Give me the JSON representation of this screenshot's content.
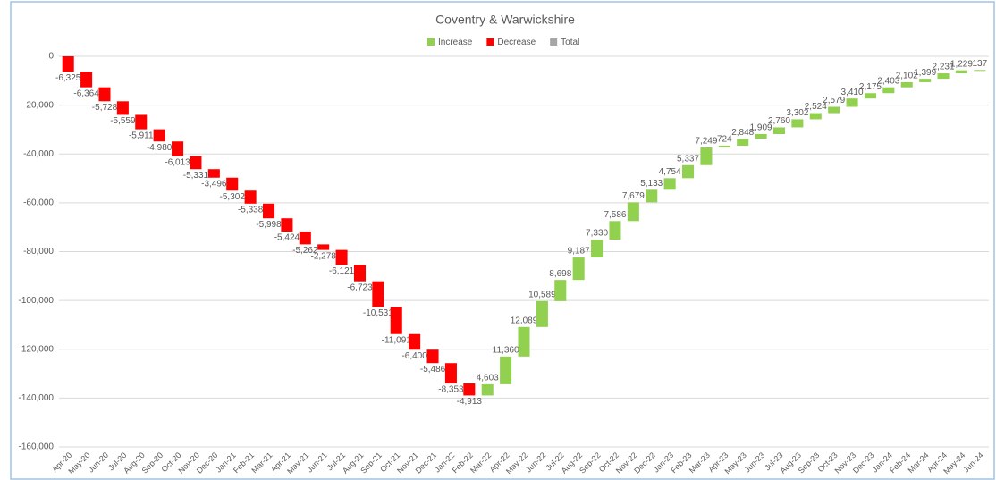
{
  "chart_data": {
    "type": "waterfall",
    "title": "Coventry & Warwickshire",
    "legend": [
      {
        "name": "Increase",
        "color": "#92d050"
      },
      {
        "name": "Decrease",
        "color": "#ff0000"
      },
      {
        "name": "Total",
        "color": "#a5a5a5"
      }
    ],
    "categories": [
      "Apr-20",
      "May-20",
      "Jun-20",
      "Jul-20",
      "Aug-20",
      "Sep-20",
      "Oct-20",
      "Nov-20",
      "Dec-20",
      "Jan-21",
      "Feb-21",
      "Mar-21",
      "Apr-21",
      "May-21",
      "Jun-21",
      "Jul-21",
      "Aug-21",
      "Sep-21",
      "Oct-21",
      "Nov-21",
      "Dec-21",
      "Jan-22",
      "Feb-22",
      "Mar-22",
      "Apr-22",
      "May-22",
      "Jun-22",
      "Jul-22",
      "Aug-22",
      "Sep-22",
      "Oct-22",
      "Nov-22",
      "Dec-22",
      "Jan-23",
      "Feb-23",
      "Mar-23",
      "Apr-23",
      "May-23",
      "Jun-23",
      "Jul-23",
      "Aug-23",
      "Sep-23",
      "Oct-23",
      "Nov-23",
      "Dec-23",
      "Jan-24",
      "Feb-24",
      "Mar-24",
      "Apr-24",
      "May-24",
      "Jun-24"
    ],
    "values": [
      -6325,
      -6364,
      -5728,
      -5559,
      -5911,
      -4980,
      -6013,
      -5331,
      -3496,
      -5302,
      -5338,
      -5998,
      -5424,
      -5262,
      -2278,
      -6121,
      -6723,
      -10531,
      -11091,
      -6400,
      -5486,
      -8353,
      -4913,
      4603,
      11360,
      12089,
      10589,
      8698,
      9187,
      7330,
      7586,
      7679,
      5133,
      4754,
      5337,
      7249,
      724,
      2848,
      1909,
      2760,
      3302,
      2524,
      2579,
      3410,
      2175,
      2403,
      2102,
      1399,
      2231,
      1229,
      137
    ],
    "value_labels": [
      "-6,325",
      "-6,364",
      "-5,728",
      "-5,559",
      "-5,911",
      "-4,980",
      "-6,013",
      "-5,331",
      "-3,496",
      "-5,302",
      "-5,338",
      "-5,998",
      "-5,424",
      "-5,262",
      "-2,278",
      "-6,121",
      "-6,723",
      "-10,531",
      "-11,091",
      "-6,400",
      "-5,486",
      "-8,353",
      "-4,913",
      "4,603",
      "11,360",
      "12,089",
      "10,589",
      "8,698",
      "9,187",
      "7,330",
      "7,586",
      "7,679",
      "5,133",
      "4,754",
      "5,337",
      "7,249",
      "724",
      "2,848",
      "1,909",
      "2,760",
      "3,302",
      "2,524",
      "2,579",
      "3,410",
      "2,175",
      "2,403",
      "2,102",
      "1,399",
      "2,231",
      "1,229",
      "137"
    ],
    "ylim": [
      -160000,
      0
    ],
    "yticks": [
      0,
      {
        "value": -20000,
        "label": "-20,000"
      },
      {
        "value": -40000,
        "label": "-40,000"
      },
      {
        "value": -60000,
        "label": "-60,000"
      },
      {
        "value": -80000,
        "label": "-80,000"
      },
      {
        "value": -100000,
        "label": "-100,000"
      },
      {
        "value": -120000,
        "label": "-120,000"
      },
      {
        "value": -140000,
        "label": "-140,000"
      },
      {
        "value": -160000,
        "label": "-160,000"
      }
    ],
    "grid": true
  }
}
